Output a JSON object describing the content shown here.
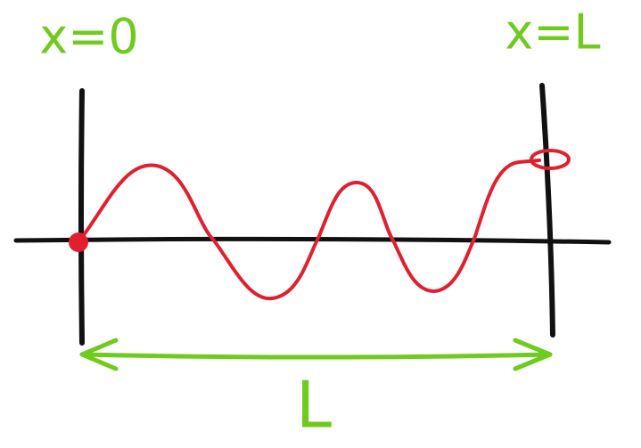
{
  "labels": {
    "left": "x=0",
    "right": "x=L",
    "length": "L"
  }
}
